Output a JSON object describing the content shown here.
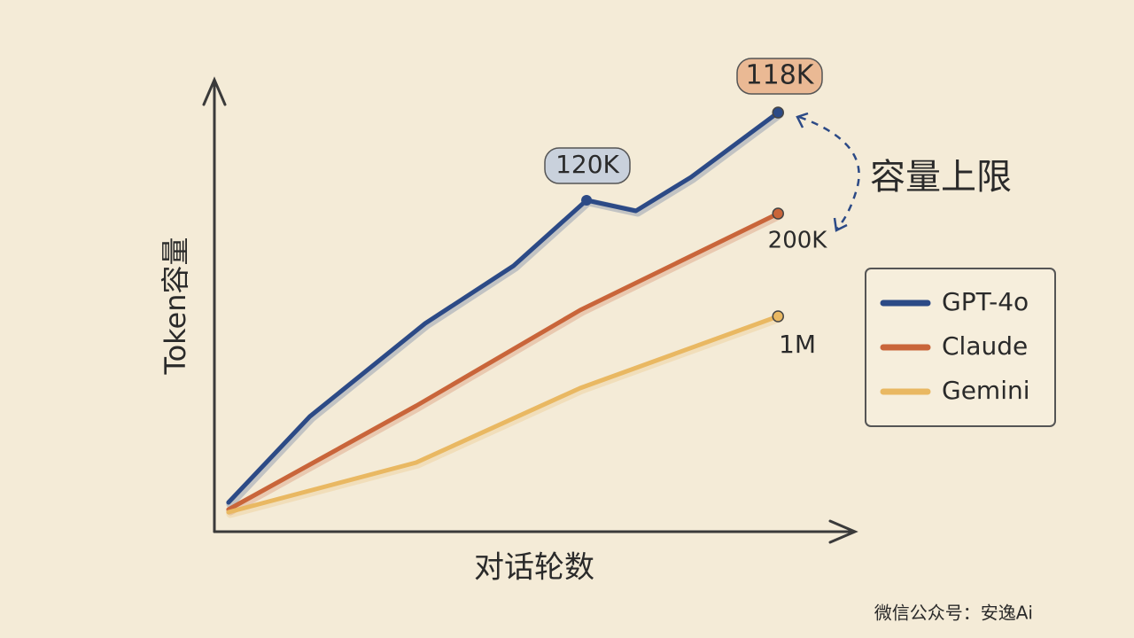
{
  "chart_data": {
    "type": "line",
    "x_label": "对话轮数",
    "y_label": "Token容量",
    "xlim": [
      0,
      100
    ],
    "ylim": [
      0,
      100
    ],
    "grid": false,
    "legend": "right",
    "series": [
      {
        "name": "GPT-4o",
        "color": "#2c4a86",
        "x": [
          2.2,
          14.9,
          32.9,
          46.7,
          58.1,
          65.8,
          74.4,
          88.0
        ],
        "values": [
          6.6,
          26,
          47,
          60,
          74.8,
          72.4,
          80,
          94.6
        ]
      },
      {
        "name": "Claude",
        "color": "#c9653a",
        "x": [
          2.2,
          31.5,
          57.1,
          88.0
        ],
        "values": [
          5,
          28.4,
          50,
          71.8
        ]
      },
      {
        "name": "Gemini",
        "color": "#e9b862",
        "x": [
          2.2,
          31.5,
          57.1,
          88.0
        ],
        "values": [
          4.4,
          15.6,
          32.4,
          48.6
        ]
      }
    ],
    "annotations": [
      "120K",
      "118K",
      "200K",
      "1M",
      "容量上限"
    ],
    "watermark": "微信公众号：安逸Ai"
  }
}
